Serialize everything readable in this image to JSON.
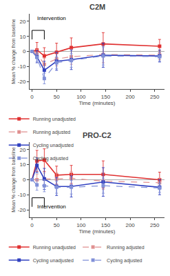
{
  "chart_data": [
    {
      "type": "line",
      "title": "C2M",
      "xlabel": "Time (minutes)",
      "ylabel": "Mean % change from baseline",
      "x": [
        0,
        10,
        25,
        50,
        80,
        145,
        260
      ],
      "series": [
        {
          "name": "Running unadjusted",
          "color": "#e03030",
          "line_style": "solid",
          "marker": "square",
          "values": [
            0,
            1.0,
            -3.0,
            -0.5,
            2.5,
            5.0,
            3.5
          ],
          "errors": [
            0,
            5.0,
            5.5,
            6.0,
            6.5,
            7.5,
            4.5
          ]
        },
        {
          "name": "Running adjusted",
          "color": "#e09090",
          "line_style": "dashed",
          "marker": "square",
          "values": [
            0,
            -1.5,
            -8.5,
            -5.0,
            -3.5,
            -2.0,
            -2.5
          ],
          "errors": [
            0,
            3.0,
            4.0,
            4.5,
            5.0,
            5.5,
            3.0
          ]
        },
        {
          "name": "Cycling unadjusted",
          "color": "#3040c0",
          "line_style": "solid",
          "marker": "square",
          "values": [
            0,
            -3.5,
            -12.5,
            -6.5,
            -5.5,
            -2.5,
            -3.0
          ],
          "errors": [
            0,
            4.0,
            6.0,
            6.0,
            6.5,
            8.0,
            4.0
          ]
        },
        {
          "name": "Cycling adjusted",
          "color": "#8090d8",
          "line_style": "dashed",
          "marker": "square",
          "values": [
            0,
            -4.0,
            -18.0,
            -7.5,
            -6.0,
            -3.0,
            -3.5
          ],
          "errors": [
            0,
            2.5,
            3.5,
            4.0,
            4.5,
            6.0,
            3.0
          ]
        }
      ],
      "annotations": [
        {
          "text": "Intervention",
          "x": 7,
          "y": 19,
          "bracket": {
            "x": [
              0,
              25
            ],
            "y": [
              8,
              14
            ]
          }
        }
      ],
      "xlim": [
        -5,
        270
      ],
      "xticks": [
        0,
        50,
        100,
        150,
        200,
        250
      ],
      "ylim": [
        -25,
        25
      ],
      "yticks": [
        -20,
        -10,
        0,
        10,
        20
      ],
      "grid": false,
      "legend": "bottom"
    },
    {
      "type": "line",
      "title": "PRO-C2",
      "xlabel": "Time (minutes)",
      "ylabel": "Mean % change from baseline",
      "x": [
        0,
        10,
        25,
        50,
        80,
        145,
        260
      ],
      "series": [
        {
          "name": "Running unadjusted",
          "color": "#e03030",
          "line_style": "solid",
          "marker": "square",
          "values": [
            0,
            12.5,
            13.0,
            3.0,
            3.5,
            3.5,
            0.0
          ],
          "errors": [
            0,
            7.0,
            7.5,
            6.0,
            6.0,
            9.0,
            5.0
          ]
        },
        {
          "name": "Running adjusted",
          "color": "#e09090",
          "line_style": "dashed",
          "marker": "square",
          "values": [
            0,
            0.0,
            0.5,
            0.5,
            1.0,
            -1.0,
            -2.0
          ],
          "errors": [
            0,
            3.5,
            4.0,
            4.0,
            4.5,
            5.5,
            3.0
          ]
        },
        {
          "name": "Cycling unadjusted",
          "color": "#3040c0",
          "line_style": "solid",
          "marker": "square",
          "values": [
            0,
            9.5,
            0.5,
            -4.5,
            -4.5,
            -1.5,
            -5.0
          ],
          "errors": [
            0,
            5.0,
            7.0,
            6.0,
            7.0,
            9.5,
            5.0
          ]
        },
        {
          "name": "Cycling adjusted",
          "color": "#8090d8",
          "line_style": "dashed",
          "marker": "square",
          "values": [
            0,
            -3.5,
            -4.0,
            -5.0,
            -5.0,
            -4.0,
            -5.5
          ],
          "errors": [
            0,
            3.5,
            4.0,
            4.0,
            4.5,
            5.0,
            3.0
          ]
        }
      ],
      "annotations": [
        {
          "text": "Intervention",
          "x": 7,
          "y": -21,
          "bracket": {
            "x": [
              0,
              25
            ],
            "y": [
              -18,
              -12
            ]
          }
        }
      ],
      "xlim": [
        -5,
        270
      ],
      "xticks": [
        0,
        50,
        100,
        150,
        200,
        250
      ],
      "ylim": [
        -25,
        25
      ],
      "yticks": [
        -20,
        -10,
        0,
        10,
        20
      ],
      "grid": false,
      "legend": "bottom"
    }
  ]
}
